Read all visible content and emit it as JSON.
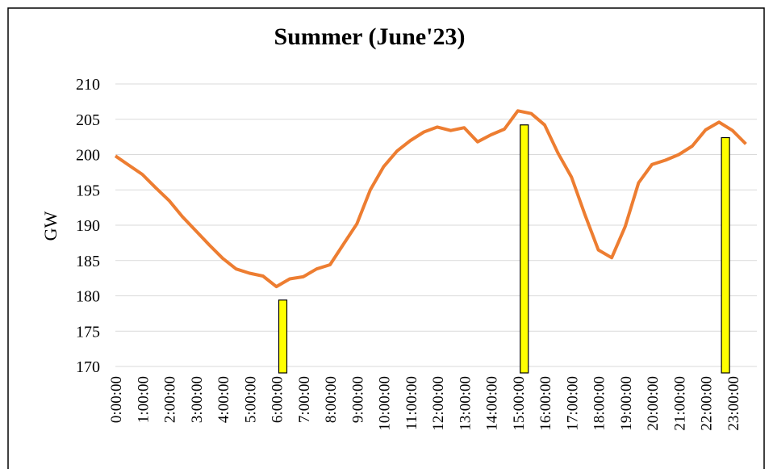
{
  "chart_data": {
    "type": "line",
    "title": "Summer (June'23)",
    "y_label": "GW",
    "categories": [
      "0:00:00",
      null,
      "1:00:00",
      null,
      "2:00:00",
      null,
      "3:00:00",
      null,
      "4:00:00",
      null,
      "5:00:00",
      null,
      "6:00:00",
      null,
      "7:00:00",
      null,
      "8:00:00",
      null,
      "9:00:00",
      null,
      "10:00:00",
      null,
      "11:00:00",
      null,
      "12:00:00",
      null,
      "13:00:00",
      null,
      "14:00:00",
      null,
      "15:00:00",
      null,
      "16:00:00",
      null,
      "17:00:00",
      null,
      "18:00:00",
      null,
      "19:00:00",
      null,
      "20:00:00",
      null,
      "21:00:00",
      null,
      "22:00:00",
      null,
      "23:00:00",
      null
    ],
    "series": [
      {
        "type": "line",
        "color": "#ed7d31",
        "values": [
          199.8,
          198.5,
          197.2,
          195.3,
          193.5,
          191.2,
          189.2,
          187.2,
          185.3,
          183.8,
          183.2,
          182.8,
          181.3,
          182.4,
          182.7,
          183.8,
          184.4,
          187.3,
          190.2,
          195.0,
          198.3,
          200.5,
          202.0,
          203.2,
          203.9,
          203.4,
          203.8,
          201.8,
          202.8,
          203.6,
          206.2,
          205.8,
          204.2,
          200.2,
          196.8,
          191.5,
          186.5,
          185.4,
          189.8,
          196.0,
          198.6,
          199.2,
          200.0,
          201.2,
          203.5,
          204.6,
          203.4,
          201.5
        ]
      },
      {
        "type": "bar",
        "color": "#ffff00",
        "values": [
          null,
          null,
          null,
          null,
          null,
          null,
          null,
          null,
          null,
          null,
          null,
          null,
          179.4,
          null,
          null,
          null,
          null,
          null,
          null,
          null,
          null,
          null,
          null,
          null,
          null,
          null,
          null,
          null,
          null,
          null,
          204.2,
          null,
          null,
          null,
          null,
          null,
          null,
          null,
          null,
          null,
          null,
          null,
          null,
          null,
          null,
          202.4,
          null,
          null
        ]
      }
    ],
    "ylim": [
      170,
      210
    ],
    "yticks": [
      170,
      175,
      180,
      185,
      190,
      195,
      200,
      205,
      210
    ],
    "grid": true
  }
}
